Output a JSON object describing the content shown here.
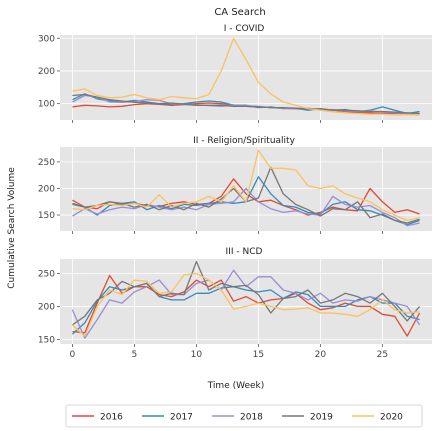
{
  "figure": {
    "title": "CA Search",
    "xlabel": "Time (Week)",
    "ylabel": "Cumulative Search Volume"
  },
  "colors": {
    "2016": "#e24a33",
    "2017": "#348abd",
    "2018": "#988ed5",
    "2019": "#777777",
    "2020": "#fbc15e",
    "panel_bg": "#e5e5e5",
    "grid": "#ffffff"
  },
  "legend": {
    "position": "bottom-center",
    "items": [
      "2016",
      "2017",
      "2018",
      "2019",
      "2020"
    ]
  },
  "chart_data": [
    {
      "type": "line",
      "title": "I - COVID",
      "xlim": [
        -1,
        29
      ],
      "ylim": [
        50,
        310
      ],
      "xticks": [
        0,
        5,
        10,
        15,
        20,
        25
      ],
      "yticks": [
        100,
        200,
        300
      ],
      "grid": true,
      "series": [
        {
          "name": "2016",
          "x": [
            0,
            1,
            2,
            3,
            4,
            5,
            6,
            7,
            8,
            9,
            10,
            11,
            12,
            13,
            14,
            15,
            16,
            17,
            18,
            19,
            20,
            21,
            22,
            23,
            24,
            25,
            26,
            27,
            28
          ],
          "values": [
            90,
            95,
            93,
            90,
            92,
            97,
            100,
            98,
            95,
            97,
            100,
            102,
            100,
            96,
            92,
            90,
            88,
            86,
            84,
            82,
            82,
            80,
            76,
            72,
            72,
            70,
            70,
            70,
            70
          ]
        },
        {
          "name": "2017",
          "x": [
            0,
            1,
            2,
            3,
            4,
            5,
            6,
            7,
            8,
            9,
            10,
            11,
            12,
            13,
            14,
            15,
            16,
            17,
            18,
            19,
            20,
            21,
            22,
            23,
            24,
            25,
            26,
            27,
            28
          ],
          "values": [
            112,
            130,
            115,
            108,
            105,
            110,
            105,
            100,
            98,
            100,
            105,
            108,
            105,
            95,
            95,
            88,
            90,
            85,
            86,
            80,
            85,
            80,
            82,
            75,
            80,
            90,
            80,
            70,
            76
          ]
        },
        {
          "name": "2018",
          "x": [
            0,
            1,
            2,
            3,
            4,
            5,
            6,
            7,
            8,
            9,
            10,
            11,
            12,
            13,
            14,
            15,
            16,
            17,
            18,
            19,
            20,
            21,
            22,
            23,
            24,
            25,
            26,
            27,
            28
          ],
          "values": [
            105,
            125,
            120,
            105,
            104,
            106,
            112,
            110,
            100,
            98,
            96,
            94,
            92,
            96,
            94,
            92,
            88,
            86,
            84,
            86,
            82,
            82,
            78,
            76,
            78,
            74,
            72,
            70,
            70
          ]
        },
        {
          "name": "2019",
          "x": [
            0,
            1,
            2,
            3,
            4,
            5,
            6,
            7,
            8,
            9,
            10,
            11,
            12,
            13,
            14,
            15,
            16,
            17,
            18,
            19,
            20,
            21,
            22,
            23,
            24,
            25,
            26,
            27,
            28
          ],
          "values": [
            125,
            128,
            120,
            112,
            108,
            104,
            102,
            100,
            102,
            98,
            95,
            95,
            95,
            92,
            92,
            90,
            88,
            88,
            86,
            85,
            84,
            80,
            80,
            78,
            76,
            76,
            74,
            72,
            70
          ]
        },
        {
          "name": "2020",
          "x": [
            0,
            1,
            2,
            3,
            4,
            5,
            6,
            7,
            8,
            9,
            10,
            11,
            12,
            13,
            14,
            15,
            16,
            17,
            18,
            19,
            20,
            21,
            22,
            23,
            24,
            25,
            26,
            27,
            28
          ],
          "values": [
            138,
            145,
            125,
            118,
            120,
            128,
            118,
            112,
            122,
            118,
            115,
            128,
            200,
            300,
            235,
            165,
            130,
            105,
            95,
            85,
            80,
            75,
            72,
            70,
            68,
            68,
            66,
            66,
            65
          ]
        }
      ]
    },
    {
      "type": "line",
      "title": "II - Religion/Spirituality",
      "xlim": [
        -1,
        29
      ],
      "ylim": [
        120,
        278
      ],
      "xticks": [
        0,
        5,
        10,
        15,
        20,
        25
      ],
      "yticks": [
        150,
        200,
        250
      ],
      "grid": true,
      "series": [
        {
          "name": "2016",
          "x": [
            0,
            1,
            2,
            3,
            4,
            5,
            6,
            7,
            8,
            9,
            10,
            11,
            12,
            13,
            14,
            15,
            16,
            17,
            18,
            19,
            20,
            21,
            22,
            23,
            24,
            25,
            26,
            27,
            28
          ],
          "values": [
            178,
            165,
            162,
            175,
            170,
            172,
            168,
            166,
            172,
            175,
            170,
            172,
            185,
            218,
            190,
            175,
            178,
            168,
            160,
            150,
            155,
            165,
            160,
            158,
            200,
            175,
            155,
            160,
            152
          ]
        },
        {
          "name": "2017",
          "x": [
            0,
            1,
            2,
            3,
            4,
            5,
            6,
            7,
            8,
            9,
            10,
            11,
            12,
            13,
            14,
            15,
            16,
            17,
            18,
            19,
            20,
            21,
            22,
            23,
            24,
            25,
            26,
            27,
            28
          ],
          "values": [
            170,
            165,
            150,
            168,
            172,
            175,
            160,
            168,
            162,
            170,
            168,
            172,
            175,
            172,
            175,
            222,
            190,
            168,
            165,
            155,
            152,
            170,
            175,
            160,
            158,
            150,
            140,
            132,
            140
          ]
        },
        {
          "name": "2018",
          "x": [
            0,
            1,
            2,
            3,
            4,
            5,
            6,
            7,
            8,
            9,
            10,
            11,
            12,
            13,
            14,
            15,
            16,
            17,
            18,
            19,
            20,
            21,
            22,
            23,
            24,
            25,
            26,
            27,
            28
          ],
          "values": [
            148,
            162,
            152,
            160,
            165,
            162,
            170,
            165,
            160,
            165,
            160,
            170,
            172,
            175,
            200,
            175,
            162,
            155,
            158,
            152,
            150,
            185,
            170,
            165,
            168,
            155,
            145,
            130,
            135
          ]
        },
        {
          "name": "2019",
          "x": [
            0,
            1,
            2,
            3,
            4,
            5,
            6,
            7,
            8,
            9,
            10,
            11,
            12,
            13,
            14,
            15,
            16,
            17,
            18,
            19,
            20,
            21,
            22,
            23,
            24,
            25,
            26,
            27,
            28
          ],
          "values": [
            172,
            165,
            168,
            175,
            172,
            165,
            170,
            160,
            168,
            160,
            172,
            165,
            180,
            200,
            175,
            182,
            240,
            190,
            170,
            160,
            148,
            162,
            160,
            175,
            145,
            152,
            140,
            135,
            142
          ]
        },
        {
          "name": "2020",
          "x": [
            0,
            1,
            2,
            3,
            4,
            5,
            6,
            7,
            8,
            9,
            10,
            11,
            12,
            13,
            14,
            15,
            16,
            17,
            18,
            19,
            20,
            21,
            22,
            23,
            24,
            25,
            26,
            27,
            28
          ],
          "values": [
            162,
            160,
            168,
            170,
            168,
            172,
            165,
            188,
            165,
            172,
            175,
            185,
            175,
            205,
            175,
            272,
            238,
            238,
            235,
            205,
            200,
            205,
            190,
            182,
            175,
            160,
            150,
            140,
            145
          ]
        }
      ]
    },
    {
      "type": "line",
      "title": "III - NCD",
      "xlim": [
        -1,
        29
      ],
      "ylim": [
        143,
        272
      ],
      "xticks": [
        0,
        5,
        10,
        15,
        20,
        25
      ],
      "yticks": [
        150,
        200,
        250
      ],
      "grid": true,
      "series": [
        {
          "name": "2016",
          "x": [
            0,
            1,
            2,
            3,
            4,
            5,
            6,
            7,
            8,
            9,
            10,
            11,
            12,
            13,
            14,
            15,
            16,
            17,
            18,
            19,
            20,
            21,
            22,
            23,
            24,
            25,
            26,
            27,
            28
          ],
          "values": [
            162,
            160,
            205,
            247,
            220,
            230,
            230,
            218,
            215,
            222,
            240,
            230,
            240,
            208,
            215,
            205,
            210,
            212,
            220,
            205,
            195,
            198,
            205,
            200,
            200,
            188,
            185,
            155,
            190
          ]
        },
        {
          "name": "2017",
          "x": [
            0,
            1,
            2,
            3,
            4,
            5,
            6,
            7,
            8,
            9,
            10,
            11,
            12,
            13,
            14,
            15,
            16,
            17,
            18,
            19,
            20,
            21,
            22,
            23,
            24,
            25,
            26,
            27,
            28
          ],
          "values": [
            158,
            175,
            208,
            230,
            225,
            230,
            235,
            215,
            210,
            210,
            220,
            220,
            228,
            230,
            225,
            222,
            225,
            212,
            222,
            218,
            200,
            200,
            200,
            210,
            215,
            205,
            205,
            185,
            180
          ]
        },
        {
          "name": "2018",
          "x": [
            0,
            1,
            2,
            3,
            4,
            5,
            6,
            7,
            8,
            9,
            10,
            11,
            12,
            13,
            14,
            15,
            16,
            17,
            18,
            19,
            20,
            21,
            22,
            23,
            24,
            25,
            26,
            27,
            28
          ],
          "values": [
            195,
            152,
            180,
            210,
            205,
            222,
            230,
            240,
            218,
            218,
            235,
            240,
            225,
            255,
            230,
            245,
            245,
            225,
            220,
            210,
            220,
            205,
            210,
            208,
            215,
            210,
            205,
            200,
            172
          ]
        },
        {
          "name": "2019",
          "x": [
            0,
            1,
            2,
            3,
            4,
            5,
            6,
            7,
            8,
            9,
            10,
            11,
            12,
            13,
            14,
            15,
            16,
            17,
            18,
            19,
            20,
            21,
            22,
            23,
            24,
            25,
            26,
            27,
            28
          ],
          "values": [
            172,
            185,
            210,
            220,
            238,
            230,
            235,
            215,
            220,
            218,
            268,
            225,
            235,
            230,
            232,
            218,
            190,
            212,
            215,
            225,
            205,
            210,
            220,
            215,
            205,
            220,
            200,
            178,
            200
          ]
        },
        {
          "name": "2020",
          "x": [
            0,
            1,
            2,
            3,
            4,
            5,
            6,
            7,
            8,
            9,
            10,
            11,
            12,
            13,
            14,
            15,
            16,
            17,
            18,
            19,
            20,
            21,
            22,
            23,
            24,
            25,
            26,
            27,
            28
          ],
          "values": [
            172,
            155,
            200,
            225,
            218,
            240,
            238,
            220,
            222,
            248,
            250,
            240,
            225,
            196,
            200,
            205,
            200,
            195,
            196,
            198,
            190,
            190,
            188,
            185,
            195,
            210,
            195,
            190,
            192
          ]
        }
      ]
    }
  ]
}
